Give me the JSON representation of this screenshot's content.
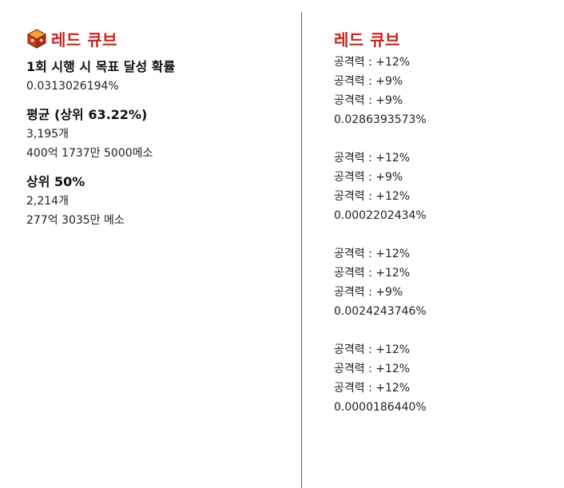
{
  "left": {
    "title": "레드 큐브",
    "icon": "red-cube-icon",
    "accent": "#c8241c",
    "sections": [
      {
        "heading": "1회 시행 시 목표 달성 확률",
        "lines": [
          "0.0313026194%"
        ]
      },
      {
        "heading": "평균 (상위 63.22%)",
        "lines": [
          "3,195개",
          "400억 1737만 5000메소"
        ]
      },
      {
        "heading": "상위 50%",
        "lines": [
          "2,214개",
          "277억 3035만 메소"
        ]
      }
    ]
  },
  "right": {
    "title": "레드 큐브",
    "combos": [
      {
        "lines": [
          "공격력 : +12%",
          "공격력 : +9%",
          "공격력 : +9%"
        ],
        "prob": "0.0286393573%"
      },
      {
        "lines": [
          "공격력 : +12%",
          "공격력 : +9%",
          "공격력 : +12%"
        ],
        "prob": "0.0002202434%"
      },
      {
        "lines": [
          "공격력 : +12%",
          "공격력 : +12%",
          "공격력 : +9%"
        ],
        "prob": "0.0024243746%"
      },
      {
        "lines": [
          "공격력 : +12%",
          "공격력 : +12%",
          "공격력 : +12%"
        ],
        "prob": "0.0000186440%"
      }
    ]
  }
}
